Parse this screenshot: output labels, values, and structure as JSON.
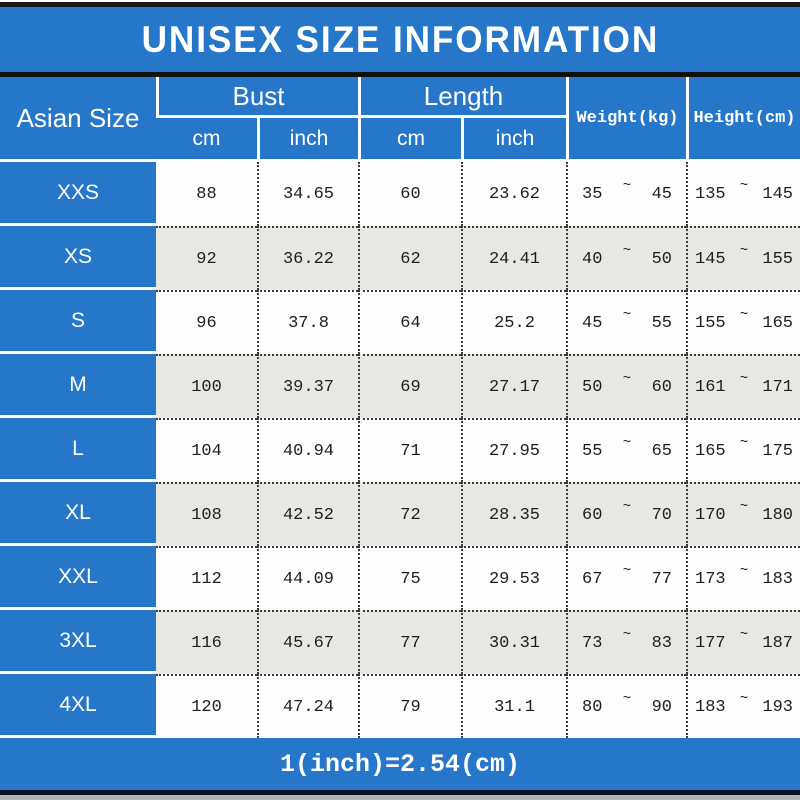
{
  "colors": {
    "accent_blue": "#2676c9",
    "row_alt_gray": "#e7e7e4",
    "row_white": "#fdfdfd",
    "border_black": "#191919",
    "bottom_navy": "#0d1024",
    "text_white": "#ffffff",
    "text_dark": "#1e1e1e"
  },
  "header": {
    "size_col": "Asian Size",
    "bust_label": "Bust",
    "length_label": "Length",
    "weight_label": "Weight(kg)",
    "height_label": "Height(cm)",
    "sub_cm": "cm",
    "sub_inch": "inch"
  },
  "tilde": "~",
  "footer": {
    "note": "1(inch)=2.54(cm)"
  },
  "chart_data": {
    "type": "table",
    "title": "UNISEX SIZE INFORMATION",
    "columns": [
      "Asian Size",
      "Bust cm",
      "Bust inch",
      "Length cm",
      "Length inch",
      "Weight(kg)",
      "Height(cm)"
    ],
    "rows": [
      {
        "size": "XXS",
        "bust_cm": "88",
        "bust_inch": "34.65",
        "length_cm": "60",
        "length_inch": "23.62",
        "weight_low": "35",
        "weight_high": "45",
        "height_low": "135",
        "height_high": "145"
      },
      {
        "size": "XS",
        "bust_cm": "92",
        "bust_inch": "36.22",
        "length_cm": "62",
        "length_inch": "24.41",
        "weight_low": "40",
        "weight_high": "50",
        "height_low": "145",
        "height_high": "155"
      },
      {
        "size": "S",
        "bust_cm": "96",
        "bust_inch": "37.8",
        "length_cm": "64",
        "length_inch": "25.2",
        "weight_low": "45",
        "weight_high": "55",
        "height_low": "155",
        "height_high": "165"
      },
      {
        "size": "M",
        "bust_cm": "100",
        "bust_inch": "39.37",
        "length_cm": "69",
        "length_inch": "27.17",
        "weight_low": "50",
        "weight_high": "60",
        "height_low": "161",
        "height_high": "171"
      },
      {
        "size": "L",
        "bust_cm": "104",
        "bust_inch": "40.94",
        "length_cm": "71",
        "length_inch": "27.95",
        "weight_low": "55",
        "weight_high": "65",
        "height_low": "165",
        "height_high": "175"
      },
      {
        "size": "XL",
        "bust_cm": "108",
        "bust_inch": "42.52",
        "length_cm": "72",
        "length_inch": "28.35",
        "weight_low": "60",
        "weight_high": "70",
        "height_low": "170",
        "height_high": "180"
      },
      {
        "size": "XXL",
        "bust_cm": "112",
        "bust_inch": "44.09",
        "length_cm": "75",
        "length_inch": "29.53",
        "weight_low": "67",
        "weight_high": "77",
        "height_low": "173",
        "height_high": "183"
      },
      {
        "size": "3XL",
        "bust_cm": "116",
        "bust_inch": "45.67",
        "length_cm": "77",
        "length_inch": "30.31",
        "weight_low": "73",
        "weight_high": "83",
        "height_low": "177",
        "height_high": "187"
      },
      {
        "size": "4XL",
        "bust_cm": "120",
        "bust_inch": "47.24",
        "length_cm": "79",
        "length_inch": "31.1",
        "weight_low": "80",
        "weight_high": "90",
        "height_low": "183",
        "height_high": "193"
      }
    ]
  }
}
